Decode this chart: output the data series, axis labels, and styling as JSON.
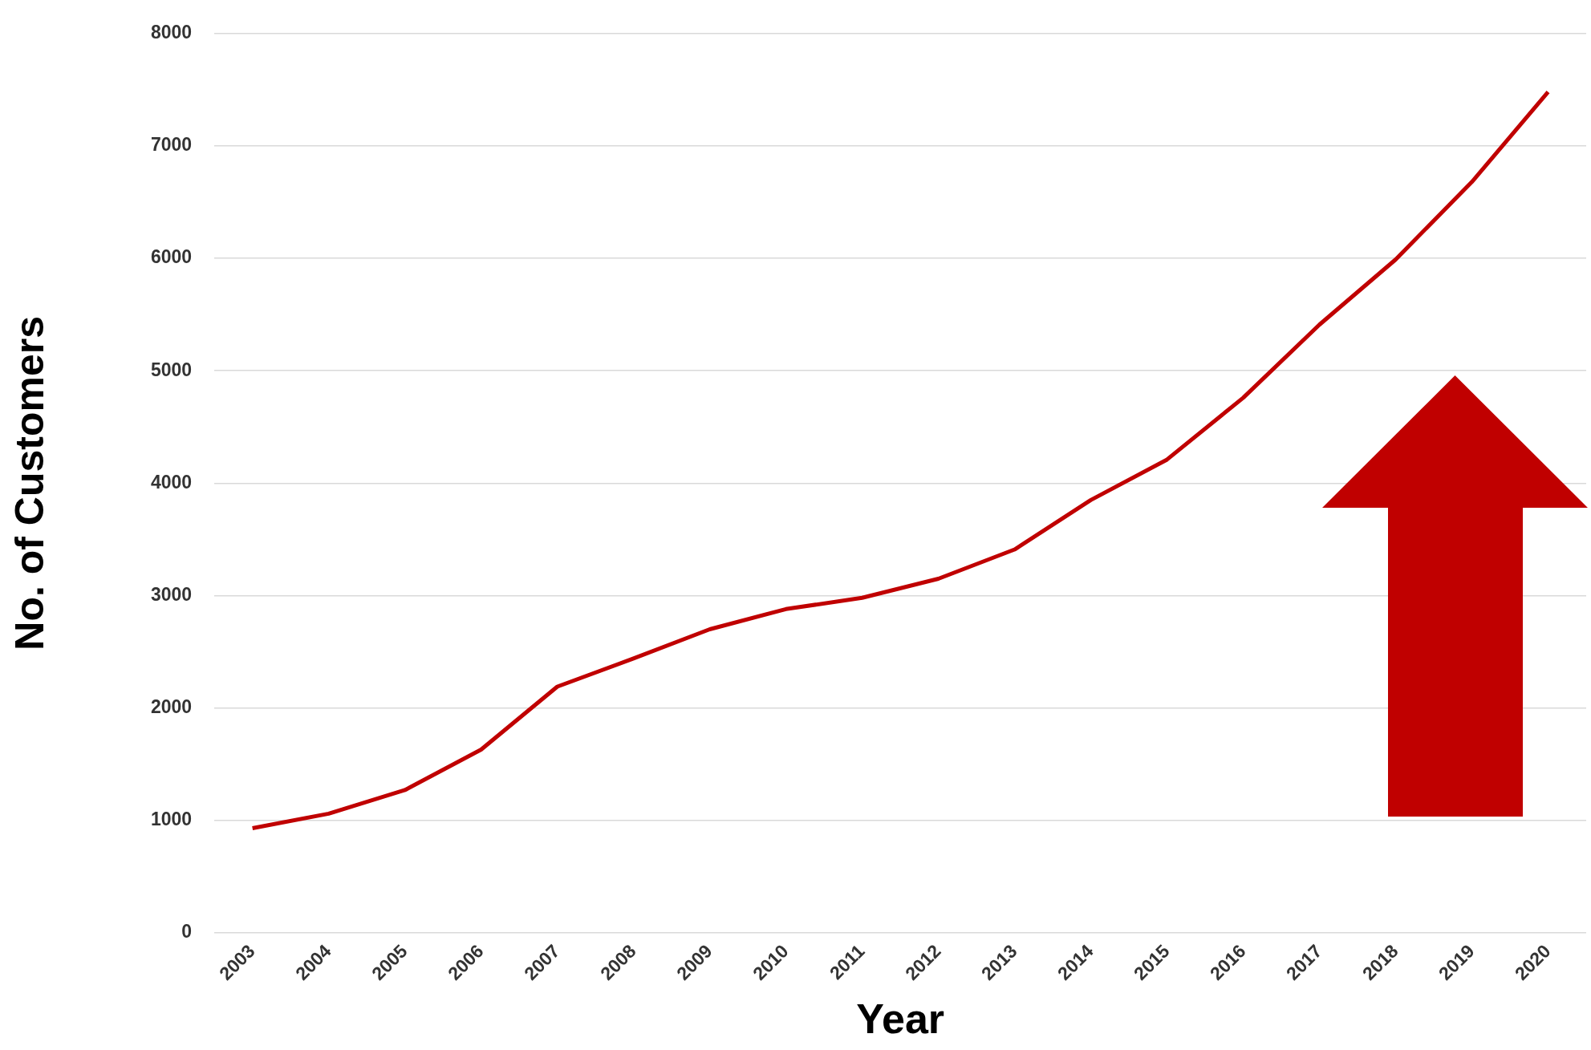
{
  "chart_data": {
    "type": "line",
    "xlabel": "Year",
    "ylabel": "No. of Customers",
    "categories": [
      "2003",
      "2004",
      "2005",
      "2006",
      "2007",
      "2008",
      "2009",
      "2010",
      "2011",
      "2012",
      "2013",
      "2014",
      "2015",
      "2016",
      "2017",
      "2018",
      "2019",
      "2020"
    ],
    "series": [
      {
        "color": "#c00000",
        "values": [
          930,
          1060,
          1270,
          1630,
          2190,
          2440,
          2700,
          2880,
          2980,
          3150,
          3410,
          3850,
          4210,
          4760,
          5410,
          5990,
          6680,
          7480
        ]
      }
    ],
    "ylim": [
      0,
      8000
    ],
    "yticks": [
      0,
      1000,
      2000,
      3000,
      4000,
      5000,
      6000,
      7000,
      8000
    ],
    "grid": "y",
    "legend": false,
    "marker": "none",
    "line_style": "solid"
  }
}
